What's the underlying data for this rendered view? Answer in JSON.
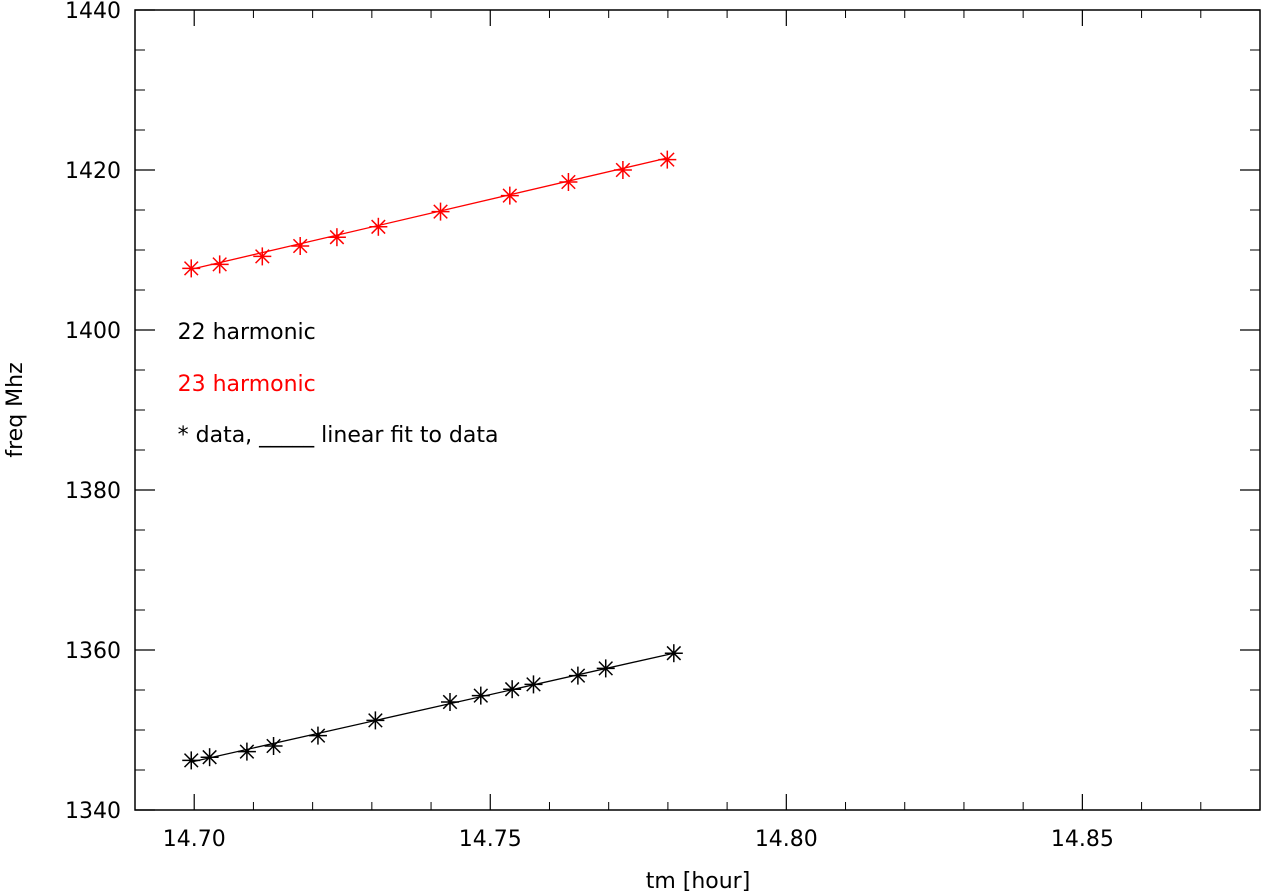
{
  "chart_data": {
    "type": "scatter",
    "title": "",
    "xlabel": "tm [hour]",
    "ylabel": "freq Mhz",
    "xlim": [
      14.69,
      14.88
    ],
    "ylim": [
      1340,
      1440
    ],
    "xticks": [
      14.7,
      14.75,
      14.8,
      14.85
    ],
    "xtick_labels": [
      "14.70",
      "14.75",
      "14.80",
      "14.85"
    ],
    "yticks": [
      1340,
      1360,
      1380,
      1400,
      1420,
      1440
    ],
    "ytick_labels": [
      "1340",
      "1360",
      "1380",
      "1400",
      "1420",
      "1440"
    ],
    "grid": false,
    "series": [
      {
        "name": "22 harmonic",
        "color": "#000000",
        "marker": "asterisk",
        "x": [
          14.6995,
          14.7026,
          14.7089,
          14.7134,
          14.7209,
          14.7306,
          14.7432,
          14.7484,
          14.7537,
          14.7573,
          14.7648,
          14.7695,
          14.781
        ],
        "y": [
          1346.2,
          1346.6,
          1347.3,
          1348.0,
          1349.3,
          1351.2,
          1353.5,
          1354.3,
          1355.1,
          1355.7,
          1356.8,
          1357.7,
          1359.6
        ],
        "fit": [
          [
            14.6995,
            1346.0
          ],
          [
            14.781,
            1359.6
          ]
        ]
      },
      {
        "name": "23 harmonic",
        "color": "#ff0000",
        "marker": "asterisk",
        "x": [
          14.6995,
          14.7043,
          14.7115,
          14.7179,
          14.7241,
          14.7311,
          14.7416,
          14.7533,
          14.7632,
          14.7724,
          14.7799
        ],
        "y": [
          1407.7,
          1408.2,
          1409.2,
          1410.5,
          1411.6,
          1412.9,
          1414.8,
          1416.8,
          1418.5,
          1420.0,
          1421.3
        ],
        "fit": [
          [
            14.6995,
            1407.6
          ],
          [
            14.7799,
            1421.5
          ]
        ]
      }
    ],
    "annotations": [
      {
        "text": "22 harmonic",
        "color": "#000000",
        "x": 14.6972,
        "y": 1398.9
      },
      {
        "text": "23 harmonic",
        "color": "#ff0000",
        "x": 14.6972,
        "y": 1392.4
      },
      {
        "text": "* data, _____ linear fit to data",
        "color": "#000000",
        "x": 14.6972,
        "y": 1386.0
      }
    ]
  }
}
